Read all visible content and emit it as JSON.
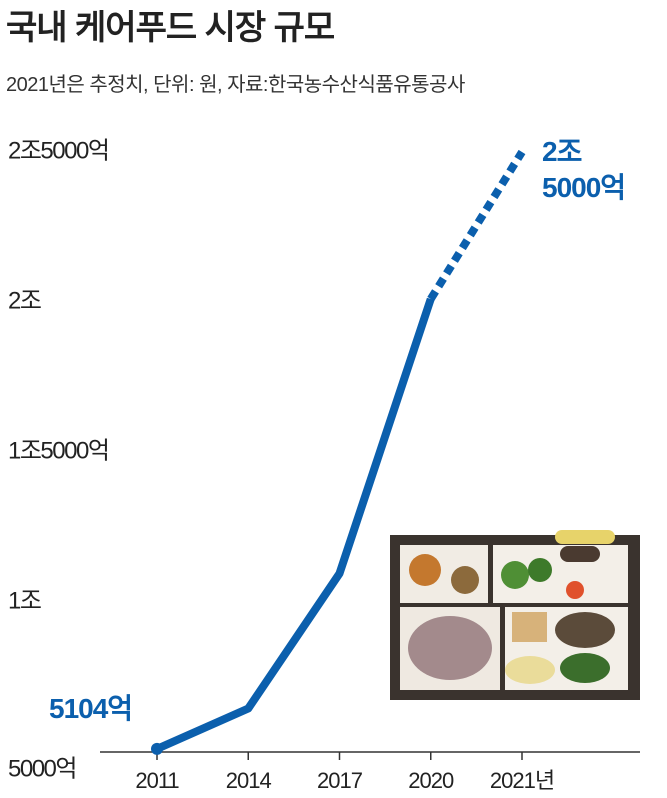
{
  "chart_data": {
    "type": "line",
    "title": "국내 케어푸드 시장 규모",
    "subtitle": "2021년은 추정치, 단위: 원, 자료:한국농수산식품유통공사",
    "categories": [
      "2011",
      "2014",
      "2017",
      "2020",
      "2021년"
    ],
    "values": [
      5104,
      6450,
      10950,
      20100,
      25000
    ],
    "value_labels": [
      "5104억",
      null,
      null,
      null,
      "2조 5000억"
    ],
    "color": "#0b5fad",
    "dashed_last_segment": true,
    "ylim": [
      5000,
      25000
    ],
    "yticks": [
      {
        "value": 5000,
        "label": "5000억"
      },
      {
        "value": 10000,
        "label": "1조"
      },
      {
        "value": 15000,
        "label": "1조5000억"
      },
      {
        "value": 20000,
        "label": "2조"
      },
      {
        "value": 25000,
        "label": "2조5000억"
      }
    ],
    "grid": false
  }
}
